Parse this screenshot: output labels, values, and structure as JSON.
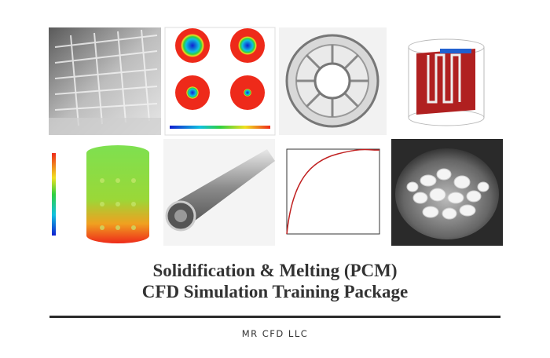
{
  "header": {
    "title_lines": [
      "Solidification & Melting (PCM)",
      "CFD Simulation Training Package"
    ]
  },
  "footer": {
    "company": "MR CFD LLC"
  }
}
